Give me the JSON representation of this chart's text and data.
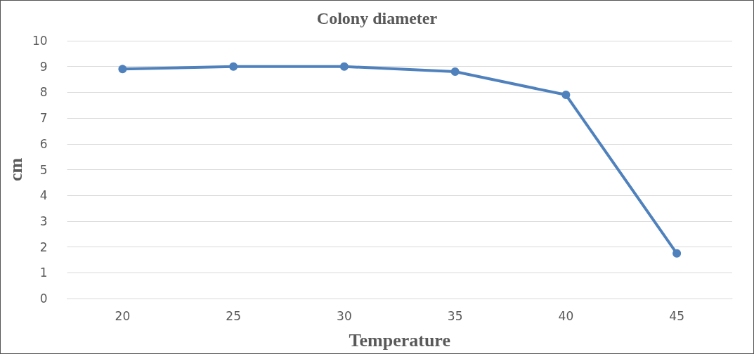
{
  "chart_data": {
    "type": "line",
    "title": "Colony diameter",
    "xlabel": "Temperature",
    "ylabel": "cm",
    "categories": [
      "20",
      "25",
      "30",
      "35",
      "40",
      "45"
    ],
    "series": [
      {
        "color": "#4f81bd",
        "values": [
          8.9,
          9.0,
          9.0,
          8.8,
          7.9,
          1.75
        ]
      }
    ],
    "ylim": [
      0,
      10
    ],
    "yticks": [
      0,
      1,
      2,
      3,
      4,
      5,
      6,
      7,
      8,
      9,
      10
    ],
    "grid": "y",
    "marker": "circle",
    "line_style": "solid"
  }
}
